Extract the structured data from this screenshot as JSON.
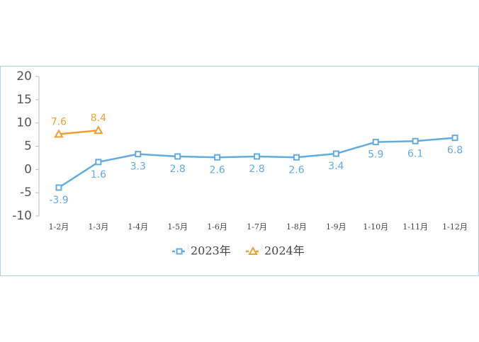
{
  "chart_data": {
    "type": "line",
    "categories": [
      "1-2月",
      "1-3月",
      "1-4月",
      "1-5月",
      "1-6月",
      "1-7月",
      "1-8月",
      "1-9月",
      "1-10月",
      "1-11月",
      "1-12月"
    ],
    "series": [
      {
        "name": "2023年",
        "color": "#62ace0",
        "marker": "square",
        "label_position": "below",
        "values": [
          -3.9,
          1.6,
          3.3,
          2.8,
          2.6,
          2.8,
          2.6,
          3.4,
          5.9,
          6.1,
          6.8
        ]
      },
      {
        "name": "2024年",
        "color": "#f0a030",
        "marker": "triangle",
        "label_position": "above",
        "values": [
          7.6,
          8.4,
          null,
          null,
          null,
          null,
          null,
          null,
          null,
          null,
          null
        ]
      }
    ],
    "ylim": [
      -10,
      20
    ],
    "yticks": [
      -10,
      -5,
      0,
      5,
      10,
      15,
      20
    ],
    "grid": false,
    "legend": "bottom"
  }
}
